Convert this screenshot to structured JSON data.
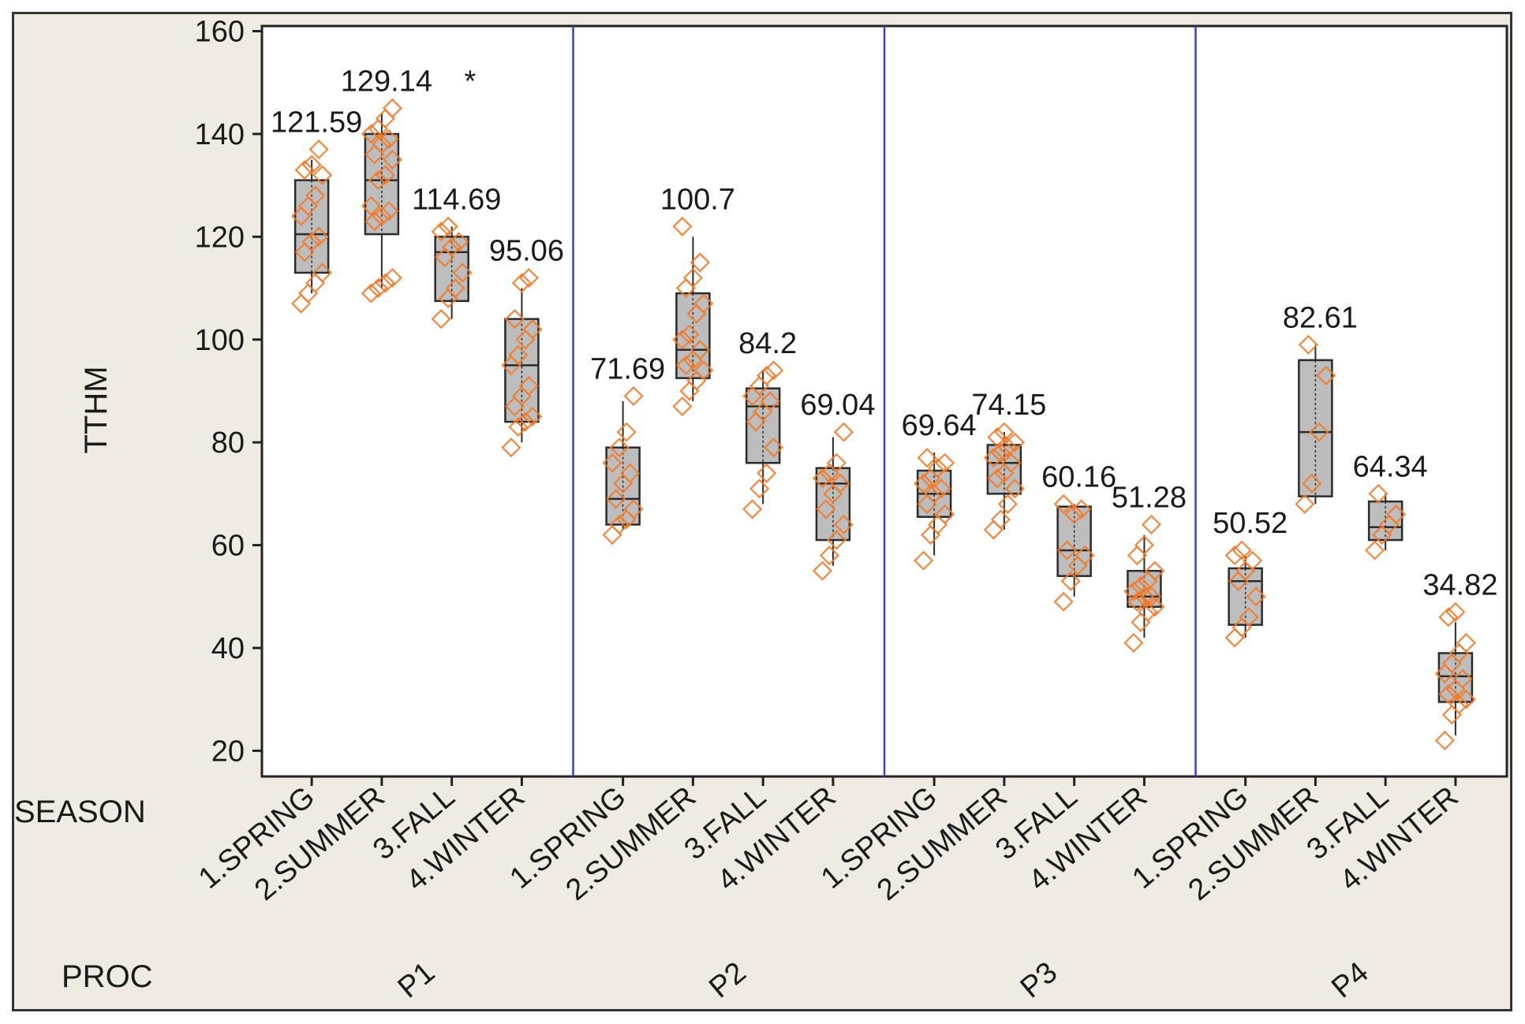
{
  "chart_data": {
    "type": "box",
    "ylabel": "TTHM",
    "ylim": [
      15,
      161
    ],
    "yticks": [
      20,
      40,
      60,
      80,
      100,
      120,
      140,
      160
    ],
    "row_labels": {
      "season": "SEASON",
      "proc": "PROC"
    },
    "groups": [
      "P1",
      "P2",
      "P3",
      "P4"
    ],
    "seasons": [
      "1.SPRING",
      "2.SUMMER",
      "3.FALL",
      "4.WINTER"
    ],
    "outlier_marker": "*",
    "colors": {
      "box_fill": "#bdbdbd",
      "box_stroke": "#2b2b2b",
      "point": "#f07a2a",
      "panel_divider": "#3b3bdc",
      "frame_bg": "#efeae2",
      "plot_bg": "#ffffff"
    },
    "boxes": [
      {
        "proc": "P1",
        "season": "1.SPRING",
        "q1": 113,
        "median": 120.5,
        "q3": 131,
        "whisker_low": 109,
        "whisker_high": 135,
        "mean_label": "121.59",
        "points": [
          107,
          109,
          111,
          113,
          117,
          119,
          120,
          124,
          126,
          128,
          132,
          133,
          134,
          137
        ]
      },
      {
        "proc": "P1",
        "season": "2.SUMMER",
        "q1": 120.5,
        "median": 131,
        "q3": 140,
        "whisker_low": 110,
        "whisker_high": 144,
        "mean_label": "129.14",
        "outlier": true,
        "points": [
          109,
          110,
          111,
          112,
          123,
          124,
          125,
          126,
          131,
          132,
          135,
          136,
          138,
          139,
          140,
          141,
          143,
          145
        ]
      },
      {
        "proc": "P1",
        "season": "3.FALL",
        "q1": 107.5,
        "median": 117,
        "q3": 120,
        "whisker_low": 104,
        "whisker_high": 122,
        "mean_label": "114.69",
        "points": [
          104,
          108,
          110,
          113,
          116,
          118,
          119,
          121,
          122
        ]
      },
      {
        "proc": "P1",
        "season": "4.WINTER",
        "q1": 84,
        "median": 95,
        "q3": 104,
        "whisker_low": 80,
        "whisker_high": 110,
        "mean_label": "95.06",
        "points": [
          79,
          83,
          84,
          85,
          87,
          89,
          91,
          95,
          97,
          100,
          102,
          104,
          111,
          112
        ]
      },
      {
        "proc": "P2",
        "season": "1.SPRING",
        "q1": 64,
        "median": 69,
        "q3": 79,
        "whisker_low": 63,
        "whisker_high": 88,
        "mean_label": "71.69",
        "points": [
          62,
          64,
          65,
          67,
          69,
          72,
          74,
          76,
          79,
          82,
          89
        ]
      },
      {
        "proc": "P2",
        "season": "2.SUMMER",
        "q1": 92.5,
        "median": 98,
        "q3": 109,
        "whisker_low": 88,
        "whisker_high": 120,
        "mean_label": "100.7",
        "points": [
          87,
          90,
          92,
          94,
          95,
          96,
          98,
          100,
          101,
          105,
          107,
          110,
          112,
          115,
          122
        ]
      },
      {
        "proc": "P2",
        "season": "3.FALL",
        "q1": 76,
        "median": 87,
        "q3": 90.5,
        "whisker_low": 68,
        "whisker_high": 94,
        "mean_label": "84.2",
        "points": [
          67,
          71,
          74,
          79,
          84,
          86,
          88,
          89,
          91,
          93,
          94
        ]
      },
      {
        "proc": "P2",
        "season": "4.WINTER",
        "q1": 61,
        "median": 72,
        "q3": 75,
        "whisker_low": 56,
        "whisker_high": 81,
        "mean_label": "69.04",
        "points": [
          55,
          58,
          61,
          64,
          67,
          70,
          72,
          73,
          74,
          76,
          82
        ]
      },
      {
        "proc": "P3",
        "season": "1.SPRING",
        "q1": 65.5,
        "median": 70,
        "q3": 74.5,
        "whisker_low": 58,
        "whisker_high": 78,
        "mean_label": "69.64",
        "points": [
          57,
          62,
          64,
          66,
          68,
          70,
          71,
          72,
          73,
          75,
          76,
          77
        ]
      },
      {
        "proc": "P3",
        "season": "2.SUMMER",
        "q1": 70,
        "median": 76,
        "q3": 79.5,
        "whisker_low": 63,
        "whisker_high": 82,
        "mean_label": "74.15",
        "points": [
          63,
          65,
          68,
          71,
          73,
          74,
          76,
          77,
          78,
          79,
          80,
          81,
          82
        ]
      },
      {
        "proc": "P3",
        "season": "3.FALL",
        "q1": 54,
        "median": 59,
        "q3": 67.5,
        "whisker_low": 50,
        "whisker_high": 68,
        "mean_label": "60.16",
        "points": [
          49,
          53,
          56,
          58,
          59,
          66,
          67,
          68
        ]
      },
      {
        "proc": "P3",
        "season": "4.WINTER",
        "q1": 48,
        "median": 50,
        "q3": 55,
        "whisker_low": 42,
        "whisker_high": 62,
        "mean_label": "51.28",
        "points": [
          41,
          45,
          47,
          48,
          49,
          50,
          50,
          51,
          52,
          53,
          55,
          58,
          60,
          64
        ]
      },
      {
        "proc": "P4",
        "season": "1.SPRING",
        "q1": 44.5,
        "median": 53,
        "q3": 55.5,
        "whisker_low": 42,
        "whisker_high": 58,
        "mean_label": "50.52",
        "points": [
          42,
          44,
          46,
          50,
          53,
          55,
          57,
          58,
          59
        ]
      },
      {
        "proc": "P4",
        "season": "2.SUMMER",
        "q1": 69.5,
        "median": 82,
        "q3": 96,
        "whisker_low": 68,
        "whisker_high": 99,
        "mean_label": "82.61",
        "points": [
          68,
          72,
          82,
          93,
          99
        ]
      },
      {
        "proc": "P4",
        "season": "3.FALL",
        "q1": 61,
        "median": 63.5,
        "q3": 68.5,
        "whisker_low": 59,
        "whisker_high": 70,
        "mean_label": "64.34",
        "points": [
          59,
          62,
          64,
          66,
          70
        ]
      },
      {
        "proc": "P4",
        "season": "4.WINTER",
        "q1": 29.5,
        "median": 34.5,
        "q3": 39,
        "whisker_low": 23,
        "whisker_high": 45,
        "mean_label": "34.82",
        "points": [
          22,
          27,
          29,
          30,
          31,
          32,
          34,
          35,
          37,
          39,
          41,
          46,
          47
        ]
      }
    ]
  }
}
